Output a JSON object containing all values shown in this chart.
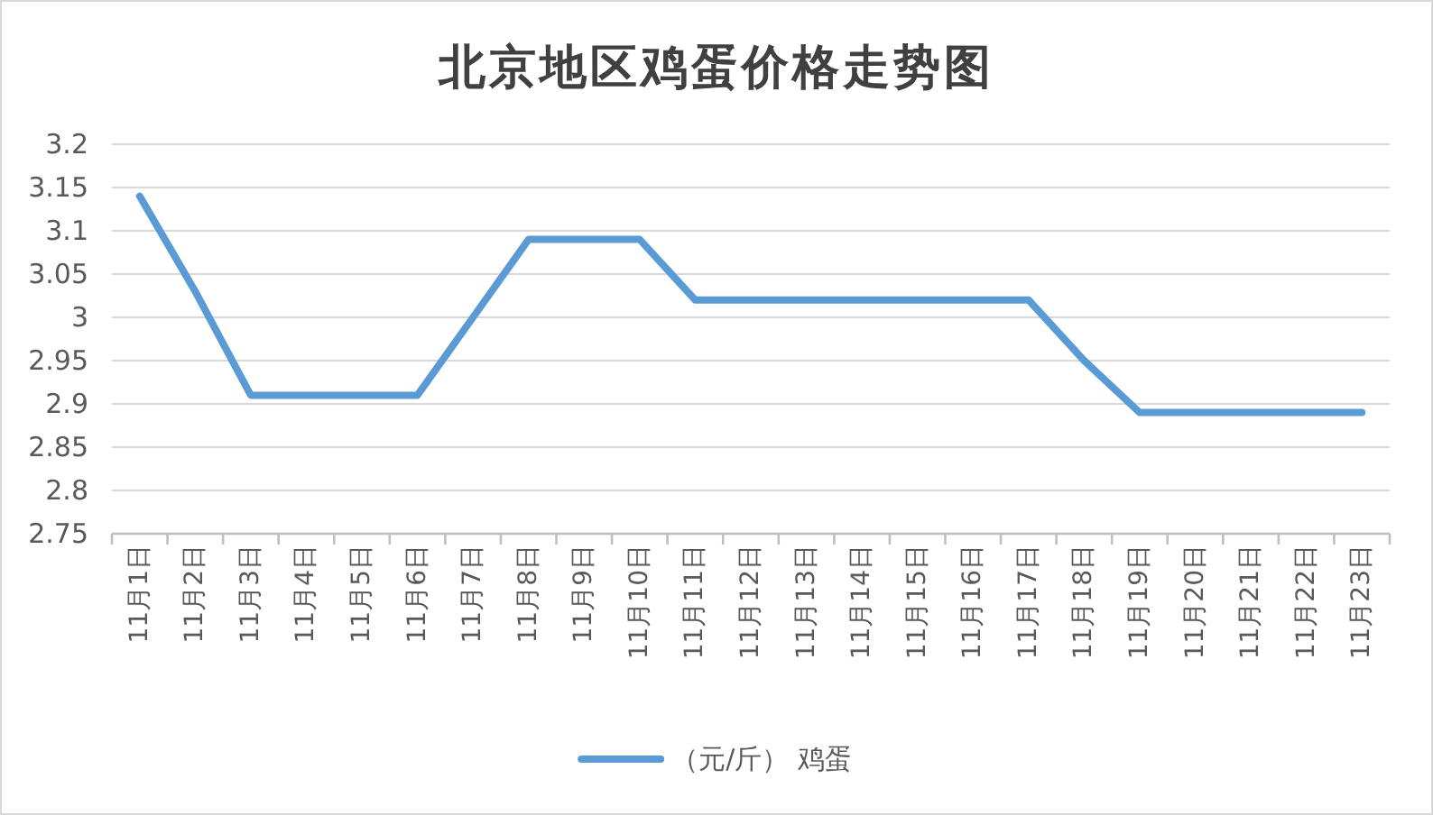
{
  "chart_data": {
    "type": "line",
    "title": "北京地区鸡蛋价格走势图",
    "categories": [
      "11月1日",
      "11月2日",
      "11月3日",
      "11月4日",
      "11月5日",
      "11月6日",
      "11月7日",
      "11月8日",
      "11月9日",
      "11月10日",
      "11月11日",
      "11月12日",
      "11月13日",
      "11月14日",
      "11月15日",
      "11月16日",
      "11月17日",
      "11月18日",
      "11月19日",
      "11月20日",
      "11月21日",
      "11月22日",
      "11月23日"
    ],
    "series": [
      {
        "name": "（元/斤） 鸡蛋",
        "color": "#5b9bd5",
        "values": [
          3.14,
          3.03,
          2.91,
          2.91,
          2.91,
          2.91,
          3.0,
          3.09,
          3.09,
          3.09,
          3.02,
          3.02,
          3.02,
          3.02,
          3.02,
          3.02,
          3.02,
          2.95,
          2.89,
          2.89,
          2.89,
          2.89,
          2.89
        ]
      }
    ],
    "ylim": [
      2.75,
      3.2
    ],
    "yticks": [
      2.75,
      2.8,
      2.85,
      2.9,
      2.95,
      3,
      3.05,
      3.1,
      3.15,
      3.2
    ],
    "grid": "y",
    "legend": "bottom"
  }
}
